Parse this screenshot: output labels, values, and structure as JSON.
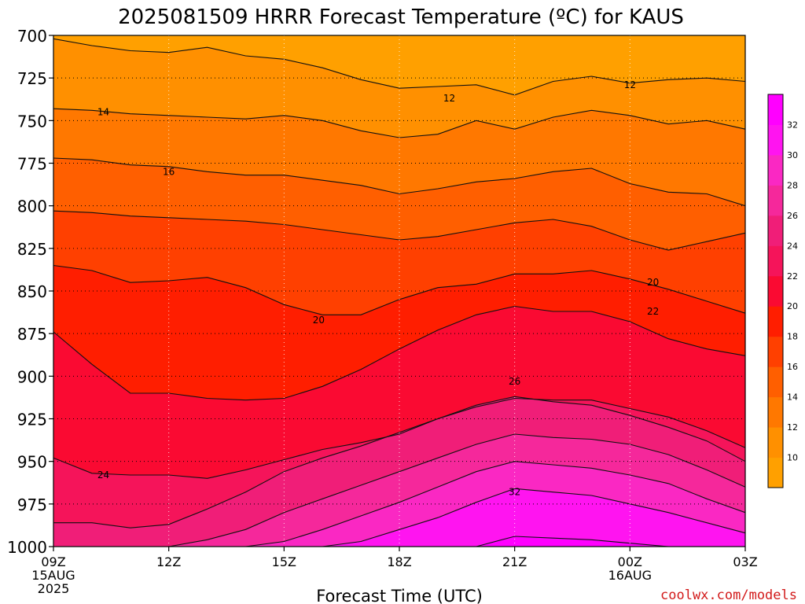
{
  "chart_data": {
    "type": "heatmap",
    "title": "2025081509 HRRR Forecast Temperature (ºC) for KAUS",
    "xlabel": "Forecast Time (UTC)",
    "ylabel": "",
    "x_ticks": [
      "09Z",
      "12Z",
      "15Z",
      "18Z",
      "21Z",
      "00Z",
      "03Z"
    ],
    "x_date_labels": [
      {
        "tick": "09Z",
        "lines": [
          "15AUG",
          "2025"
        ]
      },
      {
        "tick": "00Z",
        "lines": [
          "16AUG"
        ]
      }
    ],
    "x_hours": [
      9,
      10,
      11,
      12,
      13,
      14,
      15,
      16,
      17,
      18,
      19,
      20,
      21,
      22,
      23,
      24,
      25,
      26,
      27
    ],
    "y_ticks": [
      700,
      725,
      750,
      775,
      800,
      825,
      850,
      875,
      900,
      925,
      950,
      975,
      1000
    ],
    "y_range_hPa": [
      700,
      1000
    ],
    "grid": "dotted at each labeled tick",
    "colorbar": {
      "levels": [
        8,
        10,
        12,
        14,
        16,
        18,
        20,
        22,
        24,
        26,
        28,
        30,
        32,
        34
      ],
      "tick_labels": [
        "10",
        "12",
        "14",
        "16",
        "18",
        "20",
        "22",
        "24",
        "26",
        "28",
        "30",
        "32"
      ],
      "colors": [
        "#ffa000",
        "#ff9000",
        "#ff7800",
        "#ff5f00",
        "#ff4000",
        "#ff1e00",
        "#fa0a32",
        "#f5145a",
        "#f01e78",
        "#f5289b",
        "#fa28c3",
        "#ff14f0",
        "#ff00ff"
      ]
    },
    "ground_color": "#a0522d",
    "contour_labels": [
      {
        "text": "12",
        "x_hour": 19.3,
        "p": 737
      },
      {
        "text": "12",
        "x_hour": 24.0,
        "p": 729
      },
      {
        "text": "14",
        "x_hour": 10.3,
        "p": 745
      },
      {
        "text": "16",
        "x_hour": 12.0,
        "p": 780
      },
      {
        "text": "20",
        "x_hour": 24.6,
        "p": 845
      },
      {
        "text": "20",
        "x_hour": 15.9,
        "p": 867
      },
      {
        "text": "22",
        "x_hour": 24.6,
        "p": 862
      },
      {
        "text": "24",
        "x_hour": 10.3,
        "p": 958
      },
      {
        "text": "26",
        "x_hour": 21.0,
        "p": 903
      },
      {
        "text": "32",
        "x_hour": 21.0,
        "p": 968
      }
    ],
    "series": [
      {
        "level": 12,
        "p": [
          702,
          706,
          709,
          710,
          707,
          712,
          714,
          719,
          726,
          731,
          730,
          729,
          735,
          727,
          724,
          728,
          726,
          725,
          727
        ],
        "left_p": 702
      },
      {
        "level": 14,
        "p": [
          743,
          744,
          746,
          747,
          748,
          749,
          747,
          750,
          756,
          760,
          758,
          750,
          755,
          748,
          744,
          747,
          752,
          750,
          755
        ]
      },
      {
        "level": 16,
        "p": [
          772,
          773,
          776,
          777,
          780,
          782,
          782,
          785,
          788,
          793,
          790,
          786,
          784,
          780,
          778,
          787,
          792,
          793,
          800
        ]
      },
      {
        "level": 18,
        "p": [
          803,
          804,
          806,
          807,
          808,
          809,
          811,
          814,
          817,
          820,
          818,
          814,
          810,
          808,
          812,
          820,
          826,
          821,
          816
        ]
      },
      {
        "level": 20,
        "p": [
          835,
          838,
          845,
          844,
          842,
          848,
          858,
          864,
          864,
          855,
          848,
          846,
          840,
          840,
          838,
          843,
          849,
          856,
          863
        ]
      },
      {
        "level": 22,
        "p": [
          874,
          893,
          910,
          910,
          913,
          914,
          913,
          906,
          896,
          884,
          873,
          864,
          859,
          862,
          862,
          868,
          878,
          884,
          888
        ]
      },
      {
        "level": 24,
        "p": [
          948,
          957,
          958,
          958,
          960,
          955,
          949,
          943,
          939,
          934,
          925,
          918,
          913,
          914,
          914,
          919,
          924,
          932,
          942
        ]
      },
      {
        "level": 26,
        "p": [
          986,
          986,
          989,
          987,
          978,
          968,
          956,
          948,
          941,
          933,
          925,
          917,
          912,
          915,
          917,
          923,
          930,
          938,
          950
        ]
      },
      {
        "level": 28,
        "p": [
          1002,
          1002,
          1001,
          1000,
          996,
          990,
          980,
          972,
          964,
          956,
          948,
          940,
          934,
          936,
          937,
          940,
          946,
          955,
          965
        ]
      },
      {
        "level": 30,
        "p": [
          1002,
          1002,
          1002,
          1002,
          1002,
          1001,
          997,
          990,
          982,
          974,
          965,
          956,
          950,
          952,
          954,
          958,
          963,
          972,
          980
        ]
      },
      {
        "level": 32,
        "p": [
          1002,
          1002,
          1002,
          1002,
          1002,
          1002,
          1002,
          1001,
          997,
          990,
          983,
          974,
          966,
          968,
          970,
          975,
          980,
          986,
          992
        ]
      },
      {
        "level": 34,
        "p": [
          1002,
          1002,
          1002,
          1002,
          1002,
          1002,
          1002,
          1002,
          1002,
          1002,
          1002,
          1000,
          994,
          995,
          996,
          998,
          1000,
          1002,
          1002
        ]
      }
    ]
  },
  "credit": "coolwx.com/models"
}
